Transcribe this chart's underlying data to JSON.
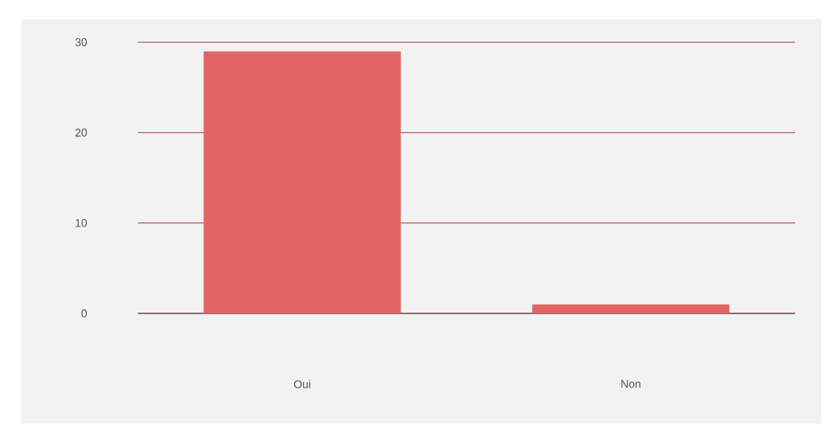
{
  "chart_data": {
    "type": "bar",
    "categories": [
      "Oui",
      "Non"
    ],
    "values": [
      29,
      1
    ],
    "color": "#e06663",
    "ylim": [
      0,
      30
    ],
    "yticks": [
      0,
      10,
      20,
      30
    ],
    "grid": "y"
  }
}
